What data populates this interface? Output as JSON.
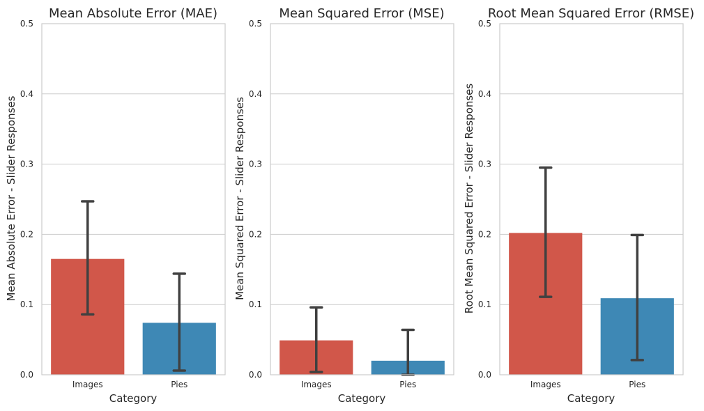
{
  "chart_data": [
    {
      "type": "bar",
      "title": "Mean Absolute Error (MAE)",
      "xlabel": "Category",
      "ylabel": "Mean Absolute Error - Slider Responses",
      "categories": [
        "Images",
        "Pies"
      ],
      "values": [
        0.165,
        0.074
      ],
      "error_low": [
        0.086,
        0.006
      ],
      "error_high": [
        0.247,
        0.144
      ],
      "ylim": [
        0,
        0.5
      ],
      "yticks": [
        "0.0",
        "0.1",
        "0.2",
        "0.3",
        "0.4",
        "0.5"
      ],
      "grid": "horizontal",
      "colors": [
        "#d1574a",
        "#3e88b5"
      ],
      "error_color": "#404040"
    },
    {
      "type": "bar",
      "title": "Mean Squared Error (MSE)",
      "xlabel": "Category",
      "ylabel": "Mean Squared Error - Slider Responses",
      "categories": [
        "Images",
        "Pies"
      ],
      "values": [
        0.049,
        0.02
      ],
      "error_low": [
        0.004,
        0.0
      ],
      "error_high": [
        0.096,
        0.064
      ],
      "ylim": [
        0,
        0.5
      ],
      "yticks": [
        "0.0",
        "0.1",
        "0.2",
        "0.3",
        "0.4",
        "0.5"
      ],
      "grid": "horizontal",
      "colors": [
        "#d1574a",
        "#3e88b5"
      ],
      "error_color": "#404040"
    },
    {
      "type": "bar",
      "title": "Root Mean Squared Error (RMSE)",
      "xlabel": "Category",
      "ylabel": "Root Mean Squared Error - Slider Responses",
      "categories": [
        "Images",
        "Pies"
      ],
      "values": [
        0.202,
        0.109
      ],
      "error_low": [
        0.111,
        0.021
      ],
      "error_high": [
        0.295,
        0.199
      ],
      "ylim": [
        0,
        0.5
      ],
      "yticks": [
        "0.0",
        "0.1",
        "0.2",
        "0.3",
        "0.4",
        "0.5"
      ],
      "grid": "horizontal",
      "colors": [
        "#d1574a",
        "#3e88b5"
      ],
      "error_color": "#404040"
    }
  ]
}
